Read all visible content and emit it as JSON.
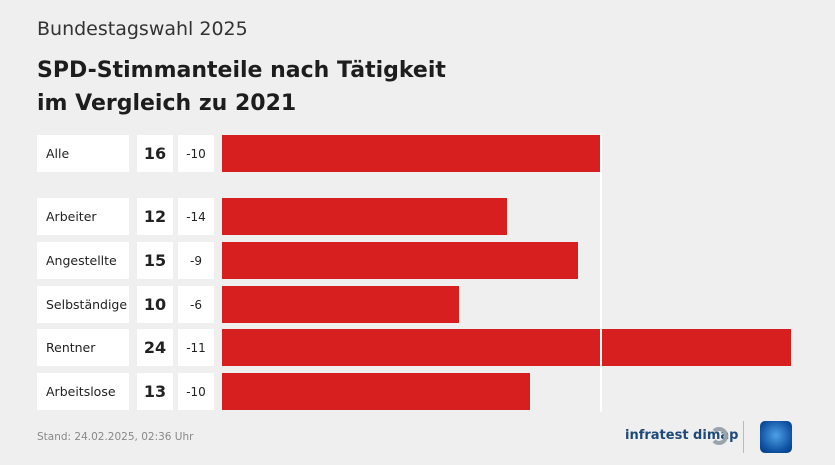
{
  "header": {
    "subtitle": "Bundestagswahl 2025",
    "title_line1": "SPD-Stimmanteile nach Tätigkeit",
    "title_line2": "im Vergleich zu 2021"
  },
  "chart_data": {
    "type": "bar",
    "orientation": "horizontal",
    "title": "SPD-Stimmanteile nach Tätigkeit im Vergleich zu 2021",
    "categories": [
      "Alle",
      "Arbeiter",
      "Angestellte",
      "Selbständige",
      "Rentner",
      "Arbeitslose"
    ],
    "values": [
      16,
      12,
      15,
      10,
      24,
      13
    ],
    "values_label": [
      "16",
      "12",
      "15",
      "10",
      "24",
      "13"
    ],
    "change_vs_2021": [
      "-10",
      "-14",
      "-9",
      "-6",
      "-11",
      "-10"
    ],
    "reference_value": 16,
    "unit": "%",
    "bar_color": "#d71f1f",
    "xlim": [
      0,
      24
    ]
  },
  "footer": {
    "stand": "Stand:  24.02.2025, 02:36 Uhr",
    "source": "infratest dimap",
    "broadcaster_logo": "1"
  }
}
